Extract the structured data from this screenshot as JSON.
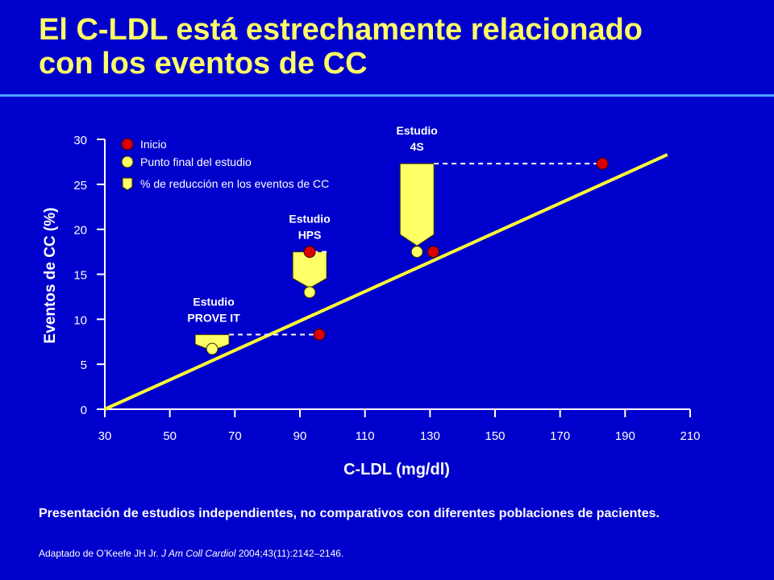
{
  "title": {
    "line1": "El C-LDL está estrechamente relacionado",
    "line2": "con los eventos de CC"
  },
  "chart_data": {
    "type": "scatter",
    "xlabel": "C-LDL (mg/dl)",
    "ylabel": "Eventos de CC (%)",
    "xlim": [
      30,
      210
    ],
    "ylim": [
      0,
      30
    ],
    "xticks": [
      30,
      50,
      70,
      90,
      110,
      130,
      150,
      170,
      190,
      210
    ],
    "yticks": [
      0,
      5,
      10,
      15,
      20,
      25,
      30
    ],
    "legend": {
      "position": "top-left",
      "items": [
        {
          "label": "Inicio",
          "marker": "red-circle"
        },
        {
          "label": "Punto final del estudio",
          "marker": "yellow-circle"
        },
        {
          "label": "% de reducción en los eventos de CC",
          "marker": "yellow-arrow"
        }
      ]
    },
    "trend_line": {
      "x": [
        30,
        203
      ],
      "y": [
        0,
        28.3
      ]
    },
    "studies": [
      {
        "name_line1": "Estudio",
        "name_line2": "PROVE IT",
        "baseline": {
          "x": 96,
          "y": 8.3
        },
        "endpoint": {
          "x": 63,
          "y": 6.7
        }
      },
      {
        "name_line1": "Estudio",
        "name_line2": "HPS",
        "baseline": {
          "x": 93,
          "y": 17.5
        },
        "endpoint": {
          "x": 93,
          "y": 13.0
        }
      },
      {
        "name_line1": "Estudio",
        "name_line2": "4S",
        "baseline": {
          "x": 183,
          "y": 27.3
        },
        "endpoint": {
          "x": 126,
          "y": 17.5
        }
      }
    ],
    "extra_baselines": [
      {
        "x": 131,
        "y": 17.5
      }
    ]
  },
  "colors": {
    "background": "#0000cc",
    "title": "#ffff66",
    "axis": "#ffffff",
    "baseline_marker": "#dd0000",
    "endpoint_marker": "#ffff66",
    "trend_line": "#ffff33",
    "arrow": "#ffff66"
  },
  "footnote": "Presentación de estudios independientes, no comparativos con diferentes poblaciones de pacientes.",
  "source": {
    "prefix": "Adaptado de O’Keefe JH Jr.",
    "journal": "J Am Coll Cardiol",
    "citation": "2004;43(11):2142–2146."
  }
}
